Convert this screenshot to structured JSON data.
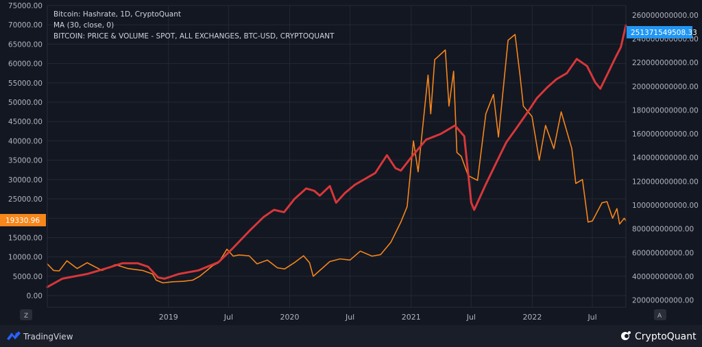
{
  "legend": {
    "line1": "Bitcoin: Hashrate, 1D, CryptoQuant",
    "line2": "MA (30, close, 0)",
    "line3": "BITCOIN: PRICE & VOLUME - SPOT, ALL EXCHANGES, BTC-USD, CRYPTOQUANT"
  },
  "badges": {
    "price_last": "19330.96",
    "hashrate_last": "251371549508.33"
  },
  "buttons": {
    "left_scale": "Z",
    "right_scale": "A"
  },
  "footer": {
    "tradingview": "TradingView",
    "cryptoquant": "CryptoQuant"
  },
  "colors": {
    "background": "#131722",
    "grid": "#242832",
    "price": "#f7861b",
    "hashrate": "#d8373a",
    "price_badge": "#f7861b",
    "hashrate_badge": "#2196f3"
  },
  "chart_data": {
    "type": "line",
    "x_axis": {
      "range": [
        "2018-01-01",
        "2022-10-10"
      ],
      "ticks": [
        {
          "date": "2019-01-01",
          "label": "2019"
        },
        {
          "date": "2019-07-01",
          "label": "Jul"
        },
        {
          "date": "2020-01-01",
          "label": "2020"
        },
        {
          "date": "2020-07-01",
          "label": "Jul"
        },
        {
          "date": "2021-01-01",
          "label": "2021"
        },
        {
          "date": "2021-07-01",
          "label": "Jul"
        },
        {
          "date": "2022-01-01",
          "label": "2022"
        },
        {
          "date": "2022-07-01",
          "label": "Jul"
        }
      ]
    },
    "y_left": {
      "range": [
        -3000,
        75000
      ],
      "ticks": [
        {
          "v": 0,
          "label": "0.00"
        },
        {
          "v": 5000,
          "label": "5000.00"
        },
        {
          "v": 10000,
          "label": "10000.00"
        },
        {
          "v": 15000,
          "label": "15000.00"
        },
        {
          "v": 20000,
          "label": "20000.00"
        },
        {
          "v": 25000,
          "label": "25000.00"
        },
        {
          "v": 30000,
          "label": "30000.00"
        },
        {
          "v": 35000,
          "label": "35000.00"
        },
        {
          "v": 40000,
          "label": "40000.00"
        },
        {
          "v": 45000,
          "label": "45000.00"
        },
        {
          "v": 50000,
          "label": "50000.00"
        },
        {
          "v": 55000,
          "label": "55000.00"
        },
        {
          "v": 60000,
          "label": "60000.00"
        },
        {
          "v": 65000,
          "label": "65000.00"
        },
        {
          "v": 70000,
          "label": "70000.00"
        },
        {
          "v": 75000,
          "label": "75000.00"
        }
      ]
    },
    "y_right": {
      "range": [
        14000000000,
        268000000000
      ],
      "ticks": [
        {
          "v": 20000000000,
          "label": "20000000000.00"
        },
        {
          "v": 40000000000,
          "label": "40000000000.00"
        },
        {
          "v": 60000000000,
          "label": "60000000000.00"
        },
        {
          "v": 80000000000,
          "label": "80000000000.00"
        },
        {
          "v": 100000000000,
          "label": "100000000000.00"
        },
        {
          "v": 120000000000,
          "label": "120000000000.00"
        },
        {
          "v": 140000000000,
          "label": "140000000000.00"
        },
        {
          "v": 160000000000,
          "label": "160000000000.00"
        },
        {
          "v": 180000000000,
          "label": "180000000000.00"
        },
        {
          "v": 200000000000,
          "label": "200000000000.00"
        },
        {
          "v": 220000000000,
          "label": "220000000000.00"
        },
        {
          "v": 240000000000,
          "label": "240000000000.00"
        },
        {
          "v": 260000000000,
          "label": "260000000000.00"
        }
      ]
    },
    "series": [
      {
        "key": "price",
        "axis": "left",
        "points": [
          [
            "2018-01-01",
            8200
          ],
          [
            "2018-01-20",
            6500
          ],
          [
            "2018-02-06",
            6400
          ],
          [
            "2018-03-01",
            9000
          ],
          [
            "2018-04-01",
            7000
          ],
          [
            "2018-05-01",
            8500
          ],
          [
            "2018-06-15",
            6500
          ],
          [
            "2018-07-25",
            8000
          ],
          [
            "2018-09-01",
            7000
          ],
          [
            "2018-10-15",
            6500
          ],
          [
            "2018-11-14",
            5600
          ],
          [
            "2018-11-25",
            4000
          ],
          [
            "2018-12-15",
            3300
          ],
          [
            "2019-01-15",
            3600
          ],
          [
            "2019-02-15",
            3700
          ],
          [
            "2019-03-15",
            4000
          ],
          [
            "2019-04-05",
            5000
          ],
          [
            "2019-05-15",
            7800
          ],
          [
            "2019-06-01",
            8500
          ],
          [
            "2019-06-26",
            12000
          ],
          [
            "2019-07-15",
            10200
          ],
          [
            "2019-08-01",
            10500
          ],
          [
            "2019-09-01",
            10300
          ],
          [
            "2019-09-25",
            8200
          ],
          [
            "2019-10-26",
            9200
          ],
          [
            "2019-11-25",
            7200
          ],
          [
            "2019-12-17",
            6900
          ],
          [
            "2020-01-15",
            8500
          ],
          [
            "2020-02-12",
            10300
          ],
          [
            "2020-03-01",
            8500
          ],
          [
            "2020-03-12",
            5000
          ],
          [
            "2020-04-01",
            6500
          ],
          [
            "2020-05-01",
            8800
          ],
          [
            "2020-06-01",
            9500
          ],
          [
            "2020-07-01",
            9200
          ],
          [
            "2020-08-01",
            11500
          ],
          [
            "2020-09-05",
            10200
          ],
          [
            "2020-10-01",
            10600
          ],
          [
            "2020-11-01",
            13800
          ],
          [
            "2020-12-01",
            19000
          ],
          [
            "2020-12-20",
            23000
          ],
          [
            "2021-01-08",
            40000
          ],
          [
            "2021-01-22",
            32000
          ],
          [
            "2021-02-21",
            57000
          ],
          [
            "2021-03-01",
            47000
          ],
          [
            "2021-03-13",
            61000
          ],
          [
            "2021-04-14",
            63500
          ],
          [
            "2021-04-25",
            49000
          ],
          [
            "2021-05-09",
            58000
          ],
          [
            "2021-05-19",
            37000
          ],
          [
            "2021-06-01",
            36000
          ],
          [
            "2021-06-22",
            31000
          ],
          [
            "2021-07-20",
            29800
          ],
          [
            "2021-08-14",
            47000
          ],
          [
            "2021-09-06",
            52000
          ],
          [
            "2021-09-21",
            41000
          ],
          [
            "2021-10-20",
            66000
          ],
          [
            "2021-11-10",
            67500
          ],
          [
            "2021-11-25",
            57000
          ],
          [
            "2021-12-05",
            49000
          ],
          [
            "2021-12-31",
            46300
          ],
          [
            "2022-01-22",
            35000
          ],
          [
            "2022-02-10",
            44000
          ],
          [
            "2022-03-07",
            38000
          ],
          [
            "2022-03-29",
            47500
          ],
          [
            "2022-04-30",
            38000
          ],
          [
            "2022-05-12",
            29000
          ],
          [
            "2022-06-01",
            30000
          ],
          [
            "2022-06-18",
            19000
          ],
          [
            "2022-07-01",
            19300
          ],
          [
            "2022-07-30",
            24000
          ],
          [
            "2022-08-14",
            24300
          ],
          [
            "2022-08-31",
            20000
          ],
          [
            "2022-09-13",
            22500
          ],
          [
            "2022-09-21",
            18500
          ],
          [
            "2022-10-05",
            20000
          ],
          [
            "2022-10-10",
            19330
          ]
        ]
      },
      {
        "key": "hashrate",
        "axis": "right",
        "points": [
          [
            "2018-01-01",
            31000000000
          ],
          [
            "2018-02-15",
            38000000000
          ],
          [
            "2018-05-01",
            42000000000
          ],
          [
            "2018-07-01",
            47000000000
          ],
          [
            "2018-08-15",
            51000000000
          ],
          [
            "2018-10-01",
            51000000000
          ],
          [
            "2018-11-01",
            48000000000
          ],
          [
            "2018-12-01",
            39000000000
          ],
          [
            "2018-12-20",
            38000000000
          ],
          [
            "2019-02-01",
            42000000000
          ],
          [
            "2019-04-01",
            45000000000
          ],
          [
            "2019-06-01",
            52000000000
          ],
          [
            "2019-07-15",
            64000000000
          ],
          [
            "2019-09-01",
            78000000000
          ],
          [
            "2019-10-15",
            90000000000
          ],
          [
            "2019-11-15",
            96000000000
          ],
          [
            "2019-12-15",
            94000000000
          ],
          [
            "2020-01-15",
            105000000000
          ],
          [
            "2020-02-20",
            114000000000
          ],
          [
            "2020-03-15",
            112000000000
          ],
          [
            "2020-04-01",
            108000000000
          ],
          [
            "2020-05-01",
            116000000000
          ],
          [
            "2020-05-20",
            102000000000
          ],
          [
            "2020-06-15",
            110000000000
          ],
          [
            "2020-07-15",
            117000000000
          ],
          [
            "2020-08-15",
            122000000000
          ],
          [
            "2020-09-15",
            127000000000
          ],
          [
            "2020-10-20",
            142000000000
          ],
          [
            "2020-11-15",
            131000000000
          ],
          [
            "2020-12-01",
            129000000000
          ],
          [
            "2021-01-01",
            140000000000
          ],
          [
            "2021-02-15",
            155000000000
          ],
          [
            "2021-04-01",
            160000000000
          ],
          [
            "2021-05-13",
            167000000000
          ],
          [
            "2021-06-10",
            158000000000
          ],
          [
            "2021-07-01",
            102000000000
          ],
          [
            "2021-07-10",
            96000000000
          ],
          [
            "2021-08-15",
            118000000000
          ],
          [
            "2021-09-15",
            136000000000
          ],
          [
            "2021-10-15",
            153000000000
          ],
          [
            "2021-11-15",
            165000000000
          ],
          [
            "2021-12-15",
            177000000000
          ],
          [
            "2022-01-15",
            190000000000
          ],
          [
            "2022-02-15",
            199000000000
          ],
          [
            "2022-03-15",
            206000000000
          ],
          [
            "2022-04-15",
            211000000000
          ],
          [
            "2022-05-15",
            223000000000
          ],
          [
            "2022-06-15",
            217000000000
          ],
          [
            "2022-07-10",
            203000000000
          ],
          [
            "2022-07-25",
            198000000000
          ],
          [
            "2022-08-15",
            210000000000
          ],
          [
            "2022-09-10",
            225000000000
          ],
          [
            "2022-09-25",
            233000000000
          ],
          [
            "2022-10-10",
            251371549508
          ]
        ]
      }
    ]
  }
}
